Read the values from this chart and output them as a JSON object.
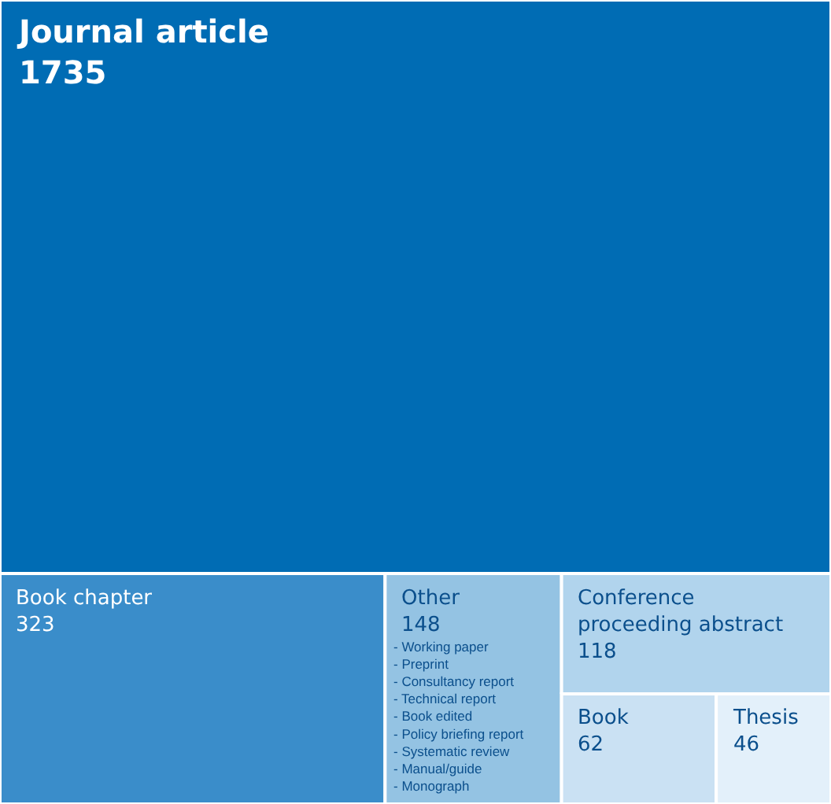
{
  "chart_data": {
    "type": "other",
    "categories": [
      "Journal article",
      "Book chapter",
      "Other",
      "Conference proceeding abstract",
      "Book",
      "Thesis"
    ],
    "values": [
      1735,
      323,
      148,
      118,
      62,
      46
    ],
    "colors": [
      "#006cb4",
      "#3a8dca",
      "#94c3e3",
      "#b1d4ed",
      "#cae1f3",
      "#e3f0fa"
    ],
    "data_labels": true,
    "annotations": [
      {
        "text": "- Working paper\n- Preprint\n- Consultancy report\n- Technical report\n- Book edited\n- Policy briefing report\n- Systematic review\n- Manual/guide\n- Monograph",
        "x": "Other"
      }
    ]
  }
}
